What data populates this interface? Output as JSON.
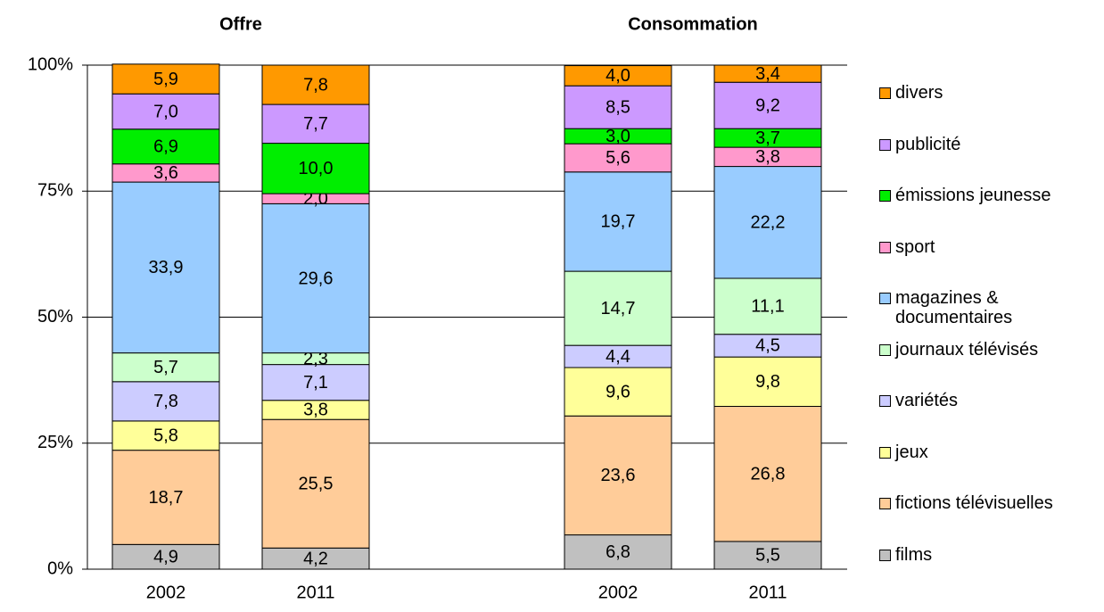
{
  "chart_data": {
    "type": "stacked_bar",
    "groups": [
      "Offre",
      "Consommation"
    ],
    "categories": [
      "2002",
      "2011",
      "2002",
      "2011"
    ],
    "ylim": [
      0,
      100
    ],
    "yticks": [
      {
        "value": 0,
        "label": "0%"
      },
      {
        "value": 25,
        "label": "25%"
      },
      {
        "value": 50,
        "label": "50%"
      },
      {
        "value": 75,
        "label": "75%"
      },
      {
        "value": 100,
        "label": "100%"
      }
    ],
    "grid": true,
    "legend": "right",
    "series": [
      {
        "name": "films",
        "color": "#c0c0c0",
        "values": [
          4.9,
          4.2,
          6.8,
          5.5
        ],
        "value_labels": [
          "4,9",
          "4,2",
          "6,8",
          "5,5"
        ]
      },
      {
        "name": "fictions télévisuelles",
        "color": "#ffcc99",
        "values": [
          18.7,
          25.5,
          23.6,
          26.8
        ],
        "value_labels": [
          "18,7",
          "25,5",
          "23,6",
          "26,8"
        ]
      },
      {
        "name": "jeux",
        "color": "#ffff99",
        "values": [
          5.8,
          3.8,
          9.6,
          9.8
        ],
        "value_labels": [
          "5,8",
          "3,8",
          "9,6",
          "9,8"
        ]
      },
      {
        "name": "variétés",
        "color": "#ccccff",
        "values": [
          7.8,
          7.1,
          4.4,
          4.5
        ],
        "value_labels": [
          "7,8",
          "7,1",
          "4,4",
          "4,5"
        ]
      },
      {
        "name": "journaux télévisés",
        "color": "#ccffcc",
        "values": [
          5.7,
          2.3,
          14.7,
          11.1
        ],
        "value_labels": [
          "5,7",
          "2,3",
          "14,7",
          "11,1"
        ]
      },
      {
        "name": "magazines & documentaires",
        "color": "#99ccff",
        "values": [
          33.9,
          29.6,
          19.7,
          22.2
        ],
        "value_labels": [
          "33,9",
          "29,6",
          "19,7",
          "22,2"
        ]
      },
      {
        "name": "sport",
        "color": "#ff99cc",
        "values": [
          3.6,
          2.0,
          5.6,
          3.8
        ],
        "value_labels": [
          "3,6",
          "2,0",
          "5,6",
          "3,8"
        ]
      },
      {
        "name": "émissions jeunesse",
        "color": "#00ee00",
        "values": [
          6.9,
          10.0,
          3.0,
          3.7
        ],
        "value_labels": [
          "6,9",
          "10,0",
          "3,0",
          "3,7"
        ]
      },
      {
        "name": "publicité",
        "color": "#cc99ff",
        "values": [
          7.0,
          7.7,
          8.5,
          9.2
        ],
        "value_labels": [
          "7,0",
          "7,7",
          "8,5",
          "9,2"
        ]
      },
      {
        "name": "divers",
        "color": "#ff9900",
        "values": [
          5.9,
          7.8,
          4.0,
          3.4
        ],
        "value_labels": [
          "5,9",
          "7,8",
          "4,0",
          "3,4"
        ]
      }
    ]
  }
}
